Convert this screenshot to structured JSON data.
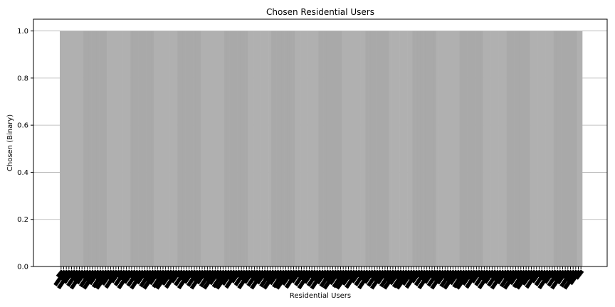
{
  "chart_data": {
    "type": "bar",
    "title": "Chosen Residential Users",
    "xlabel": "Residential Users",
    "ylabel": "Chosen (Binary)",
    "ylim": [
      0,
      1.05
    ],
    "yticks": [
      "0.0",
      "0.2",
      "0.4",
      "0.6",
      "0.8",
      "1.0"
    ],
    "grid": "y",
    "bar_count": 200,
    "values_all": 1,
    "bar_color": "#b0b0b0",
    "bar_color_alt": "#a9a9a9",
    "tick_label_color": "#000000"
  }
}
